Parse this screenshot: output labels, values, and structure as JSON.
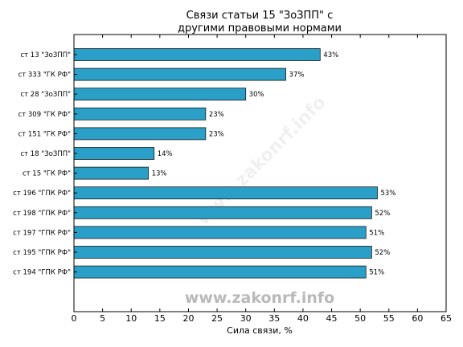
{
  "chart_data": {
    "type": "bar",
    "orientation": "horizontal",
    "title_lines": [
      "Связи статьи 15 \"ЗоЗПП\" с",
      "другими правовыми нормами"
    ],
    "xlabel": "Сила связи, %",
    "xlim": [
      0,
      65
    ],
    "xticks": [
      0,
      5,
      10,
      15,
      20,
      25,
      30,
      35,
      40,
      45,
      50,
      55,
      60,
      65
    ],
    "categories": [
      "ст 13 \"ЗоЗПП\"",
      "ст 333 \"ГК РФ\"",
      "ст 28 \"ЗоЗПП\"",
      "ст 309 \"ГК РФ\"",
      "ст 151 \"ГК РФ\"",
      "ст 18 \"ЗоЗПП\"",
      "ст 15 \"ГК РФ\"",
      "ст 196 \"ГПК РФ\"",
      "ст 198 \"ГПК РФ\"",
      "ст 197 \"ГПК РФ\"",
      "ст 195 \"ГПК РФ\"",
      "ст 194 \"ГПК РФ\""
    ],
    "values": [
      43,
      37,
      30,
      23,
      23,
      14,
      13,
      53,
      52,
      51,
      52,
      51
    ],
    "value_labels": [
      "43%",
      "37%",
      "30%",
      "23%",
      "23%",
      "14%",
      "13%",
      "53%",
      "52%",
      "51%",
      "52%",
      "51%"
    ],
    "bar_color": "#2aa0c8",
    "grid": false,
    "watermark": "www.zakonrf.info"
  }
}
